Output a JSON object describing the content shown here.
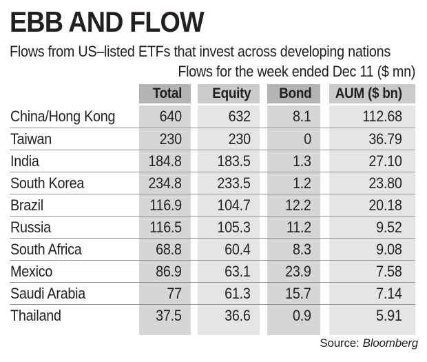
{
  "header": {
    "title": "EBB AND FLOW",
    "subtitle": "Flows from US–listed ETFs that invest across developing nations",
    "period_note": "Flows for the week ended Dec 11 ($ mn)"
  },
  "table": {
    "columns": [
      "Total",
      "Equity",
      "Bond",
      "AUM ($ bn)"
    ],
    "rows": [
      {
        "country": "China/Hong Kong",
        "total": "640",
        "equity": "632",
        "bond": "8.1",
        "aum": "112.68"
      },
      {
        "country": "Taiwan",
        "total": "230",
        "equity": "230",
        "bond": "0",
        "aum": "36.79"
      },
      {
        "country": "India",
        "total": "184.8",
        "equity": "183.5",
        "bond": "1.3",
        "aum": "27.10"
      },
      {
        "country": "South Korea",
        "total": "234.8",
        "equity": "233.5",
        "bond": "1.2",
        "aum": "23.80"
      },
      {
        "country": "Brazil",
        "total": "116.9",
        "equity": "104.7",
        "bond": "12.2",
        "aum": "20.18"
      },
      {
        "country": "Russia",
        "total": "116.5",
        "equity": "105.3",
        "bond": "11.2",
        "aum": "9.52"
      },
      {
        "country": "South Africa",
        "total": "68.8",
        "equity": "60.4",
        "bond": "8.3",
        "aum": "9.08"
      },
      {
        "country": "Mexico",
        "total": "86.9",
        "equity": "63.1",
        "bond": "23.9",
        "aum": "7.58"
      },
      {
        "country": "Saudi Arabia",
        "total": "77",
        "equity": "61.3",
        "bond": "15.7",
        "aum": "7.14"
      },
      {
        "country": "Thailand",
        "total": "37.5",
        "equity": "36.6",
        "bond": "0.9",
        "aum": "5.91"
      }
    ]
  },
  "footer": {
    "source_label": "Source:",
    "source_value": "Bloomberg"
  },
  "style": {
    "text_color": "#231f20",
    "header_dark_cell": "#b3b3b3",
    "header_light_cell": "#cbcbcb",
    "body_dark_band": "#d6d6d6",
    "body_light_band": "#e5e5e5",
    "row_divider": "#8f8f8f"
  },
  "chart_data": {
    "type": "table",
    "title": "EBB AND FLOW",
    "subtitle": "Flows from US–listed ETFs that invest across developing nations",
    "unit_note": "Flows for the week ended Dec 11 ($ mn)",
    "columns": [
      "Total",
      "Equity",
      "Bond",
      "AUM ($ bn)"
    ],
    "categories": [
      "China/Hong Kong",
      "Taiwan",
      "India",
      "South Korea",
      "Brazil",
      "Russia",
      "South Africa",
      "Mexico",
      "Saudi Arabia",
      "Thailand"
    ],
    "series": [
      {
        "name": "Total",
        "values": [
          640,
          230,
          184.8,
          234.8,
          116.9,
          116.5,
          68.8,
          86.9,
          77,
          37.5
        ]
      },
      {
        "name": "Equity",
        "values": [
          632,
          230,
          183.5,
          233.5,
          104.7,
          105.3,
          60.4,
          63.1,
          61.3,
          36.6
        ]
      },
      {
        "name": "Bond",
        "values": [
          8.1,
          0,
          1.3,
          1.2,
          12.2,
          11.2,
          8.3,
          23.9,
          15.7,
          0.9
        ]
      },
      {
        "name": "AUM ($ bn)",
        "values": [
          112.68,
          36.79,
          27.1,
          23.8,
          20.18,
          9.52,
          9.08,
          7.58,
          7.14,
          5.91
        ]
      }
    ],
    "source": "Bloomberg"
  }
}
